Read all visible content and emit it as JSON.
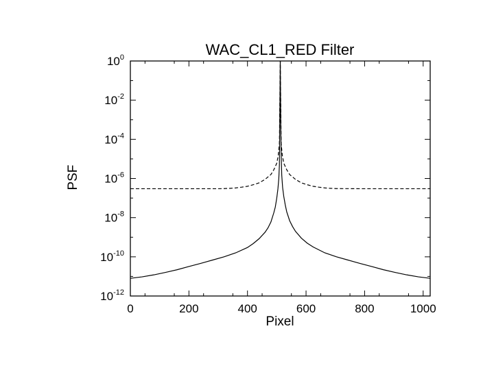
{
  "chart_data": {
    "type": "line",
    "title": "WAC_CL1_RED Filter",
    "xlabel": "Pixel",
    "ylabel": "PSF",
    "xlim": [
      0,
      1024
    ],
    "ylim": [
      1e-12,
      1
    ],
    "yscale": "log",
    "xticks": [
      0,
      200,
      400,
      600,
      800,
      1000
    ],
    "yticks": [
      {
        "base": "10",
        "exp": "-12",
        "value": 1e-12
      },
      {
        "base": "10",
        "exp": "-10",
        "value": 1e-10
      },
      {
        "base": "10",
        "exp": "-8",
        "value": 1e-08
      },
      {
        "base": "10",
        "exp": "-6",
        "value": 1e-06
      },
      {
        "base": "10",
        "exp": "-4",
        "value": 0.0001
      },
      {
        "base": "10",
        "exp": "-2",
        "value": 0.01
      },
      {
        "base": "10",
        "exp": "0",
        "value": 1
      }
    ],
    "grid": false,
    "legend": "none",
    "series": [
      {
        "style": "solid",
        "color": "#000000",
        "x": [
          0,
          40,
          80,
          120,
          160,
          200,
          240,
          280,
          320,
          360,
          400,
          420,
          440,
          460,
          470,
          480,
          490,
          495,
          500,
          504,
          507,
          509,
          510,
          511,
          512,
          513,
          514,
          515,
          517,
          520,
          524,
          529,
          534,
          544,
          554,
          564,
          584,
          604,
          624,
          664,
          704,
          744,
          784,
          824,
          864,
          904,
          944,
          984,
          1024
        ],
        "y": [
          8e-12,
          9.5e-12,
          1.2e-11,
          1.6e-11,
          2.2e-11,
          3.2e-11,
          4.6e-11,
          6.8e-11,
          1e-10,
          1.6e-10,
          3e-10,
          4.8e-10,
          8.5e-10,
          1.8e-09,
          3e-09,
          6e-09,
          1.8e-08,
          3.5e-08,
          1e-07,
          3e-07,
          1e-06,
          5e-06,
          0.0002,
          0.01,
          1.0,
          0.01,
          0.0002,
          2e-05,
          1.5e-06,
          3.5e-07,
          1.2e-07,
          4.5e-08,
          2e-08,
          7e-09,
          3.5e-09,
          2e-09,
          9e-10,
          5e-10,
          3.2e-10,
          1.6e-10,
          1e-10,
          6.8e-11,
          4.6e-11,
          3.2e-11,
          2.2e-11,
          1.6e-11,
          1.2e-11,
          9.5e-12,
          8e-12
        ]
      },
      {
        "style": "dashed",
        "color": "#000000",
        "x": [
          0,
          100,
          200,
          300,
          320,
          340,
          360,
          380,
          400,
          420,
          440,
          460,
          480,
          490,
          500,
          505,
          509,
          512,
          515,
          519,
          524,
          534,
          544,
          564,
          584,
          604,
          624,
          644,
          664,
          684,
          704,
          800,
          900,
          1024
        ],
        "y": [
          3e-07,
          3e-07,
          3e-07,
          3e-07,
          3.05e-07,
          3.15e-07,
          3.3e-07,
          3.6e-07,
          4e-07,
          4.8e-07,
          6e-07,
          9e-07,
          1.6e-06,
          2.8e-06,
          6e-06,
          1.5e-05,
          6e-05,
          1.0,
          6e-05,
          1.5e-05,
          6e-06,
          2.8e-06,
          1.6e-06,
          9e-07,
          6e-07,
          4.8e-07,
          4e-07,
          3.6e-07,
          3.3e-07,
          3.15e-07,
          3.05e-07,
          3e-07,
          3e-07,
          3e-07
        ]
      }
    ]
  }
}
